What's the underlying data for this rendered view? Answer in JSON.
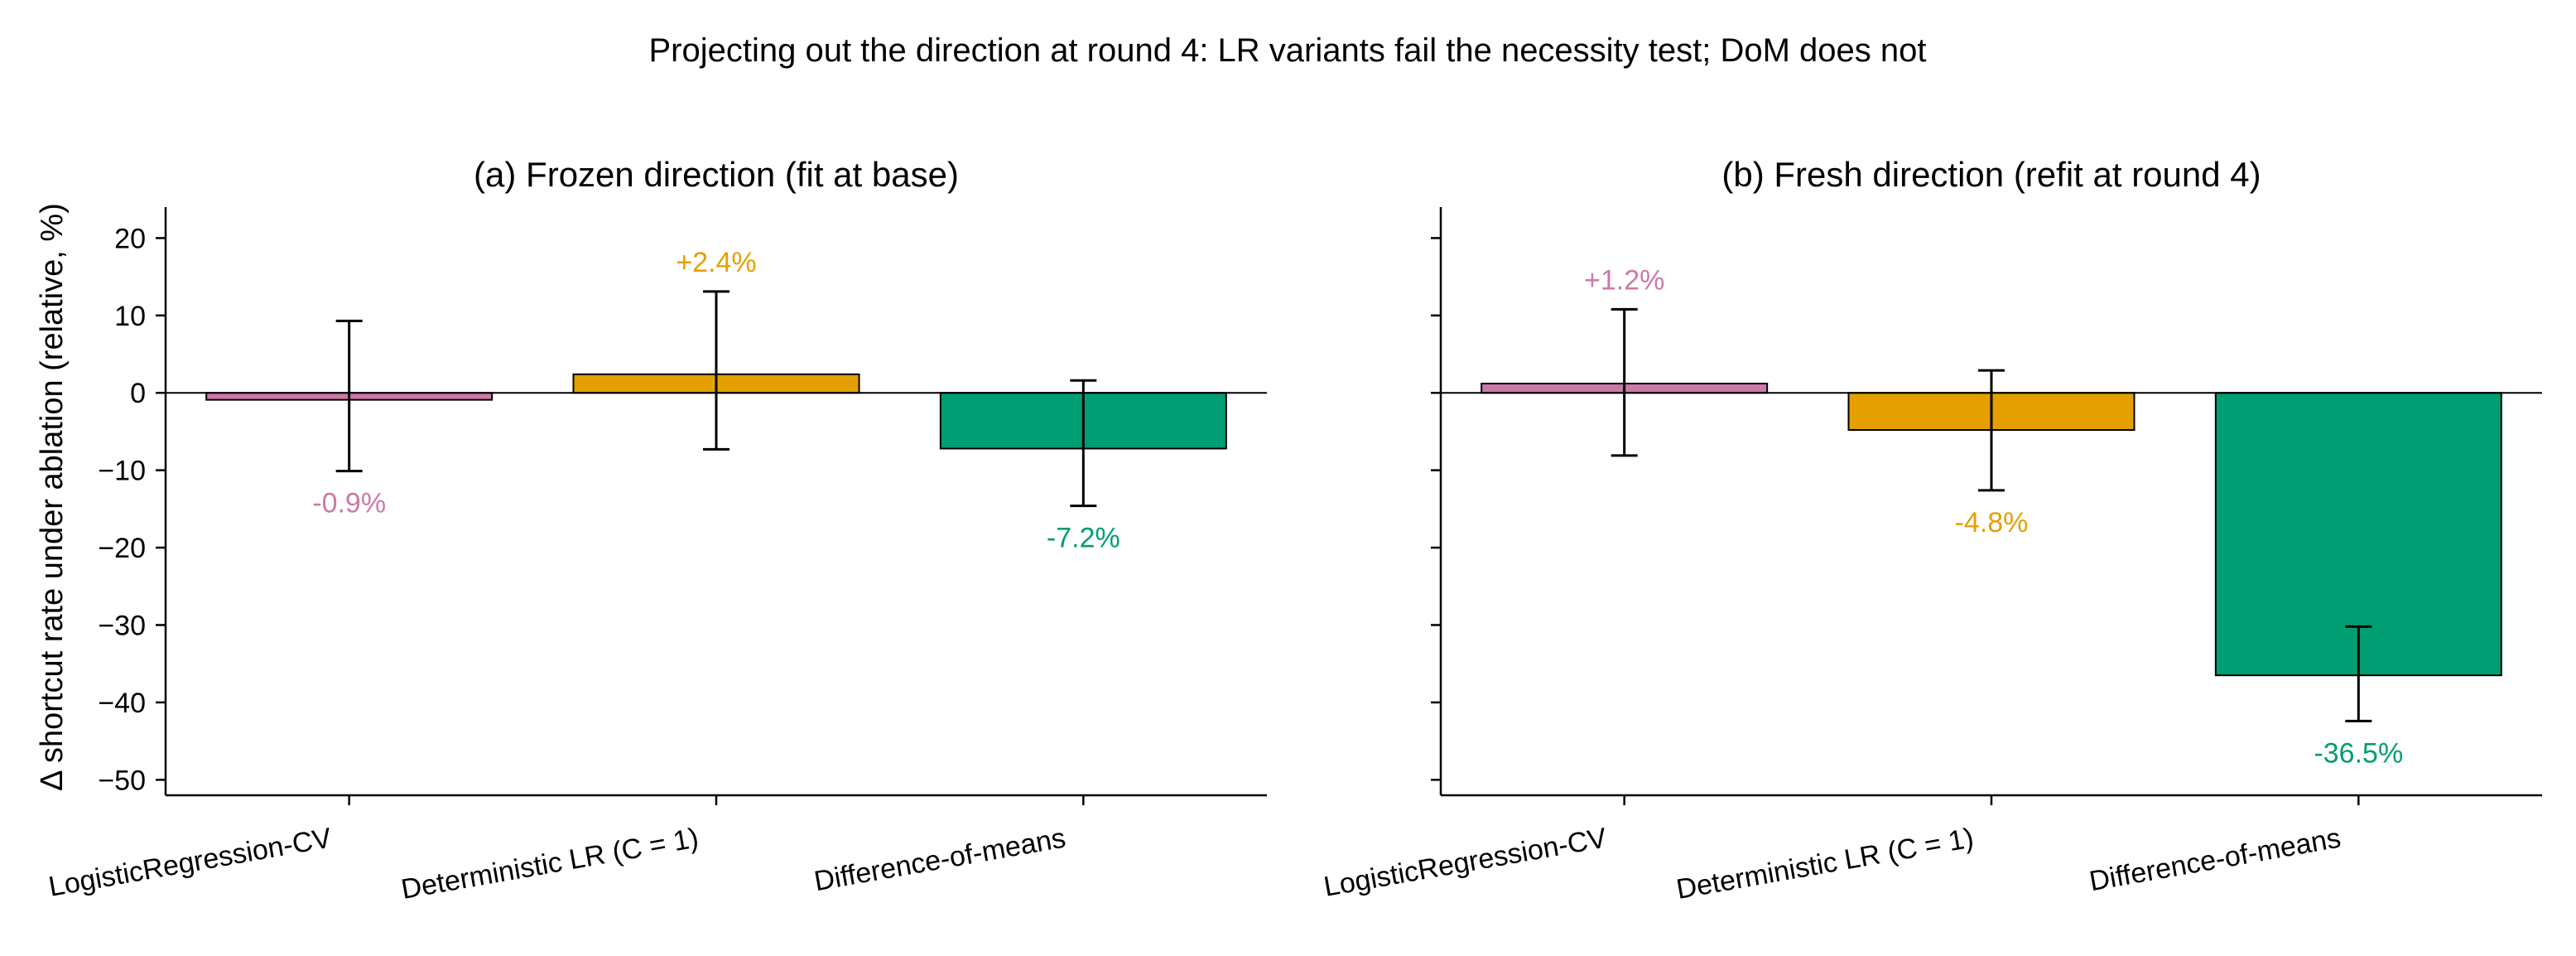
{
  "figure_title": "Projecting out the direction at round 4: LR variants fail the necessity test; DoM does not",
  "ylabel": "Δ shortcut rate under ablation (relative, %)",
  "colors": {
    "LogisticRegression-CV": "#cc79a7",
    "Deterministic LR (C = 1)": "#e69f00",
    "Difference-of-means": "#009e73"
  },
  "chart_data": [
    {
      "type": "bar",
      "title": "(a) Frozen direction (fit at base)",
      "categories": [
        "LogisticRegression-CV",
        "Deterministic LR (C = 1)",
        "Difference-of-means"
      ],
      "values": [
        -0.9,
        2.4,
        -7.2
      ],
      "error_low": [
        -10.1,
        -7.3,
        -14.6
      ],
      "error_high": [
        9.3,
        13.1,
        1.6
      ],
      "value_labels": [
        "-0.9%",
        "+2.4%",
        "-7.2%"
      ],
      "ylabel": "Δ shortcut rate under ablation (relative, %)",
      "ylim": [
        -52,
        24
      ],
      "yticks": [
        20,
        10,
        0,
        -10,
        -20,
        -30,
        -40,
        -50
      ],
      "ytick_labels": [
        "20",
        "10",
        "0",
        "−10",
        "−20",
        "−30",
        "−40",
        "−50"
      ],
      "grid": false,
      "zero_line": true
    },
    {
      "type": "bar",
      "title": "(b) Fresh direction (refit at round 4)",
      "categories": [
        "LogisticRegression-CV",
        "Deterministic LR (C = 1)",
        "Difference-of-means"
      ],
      "values": [
        1.2,
        -4.8,
        -36.5
      ],
      "error_low": [
        -8.1,
        -12.6,
        -42.4
      ],
      "error_high": [
        10.8,
        2.9,
        -30.2
      ],
      "value_labels": [
        "+1.2%",
        "-4.8%",
        "-36.5%"
      ],
      "ylim": [
        -52,
        24
      ],
      "yticks": [
        20,
        10,
        0,
        -10,
        -20,
        -30,
        -40,
        -50
      ],
      "grid": false,
      "zero_line": true,
      "shared_y": true
    }
  ]
}
